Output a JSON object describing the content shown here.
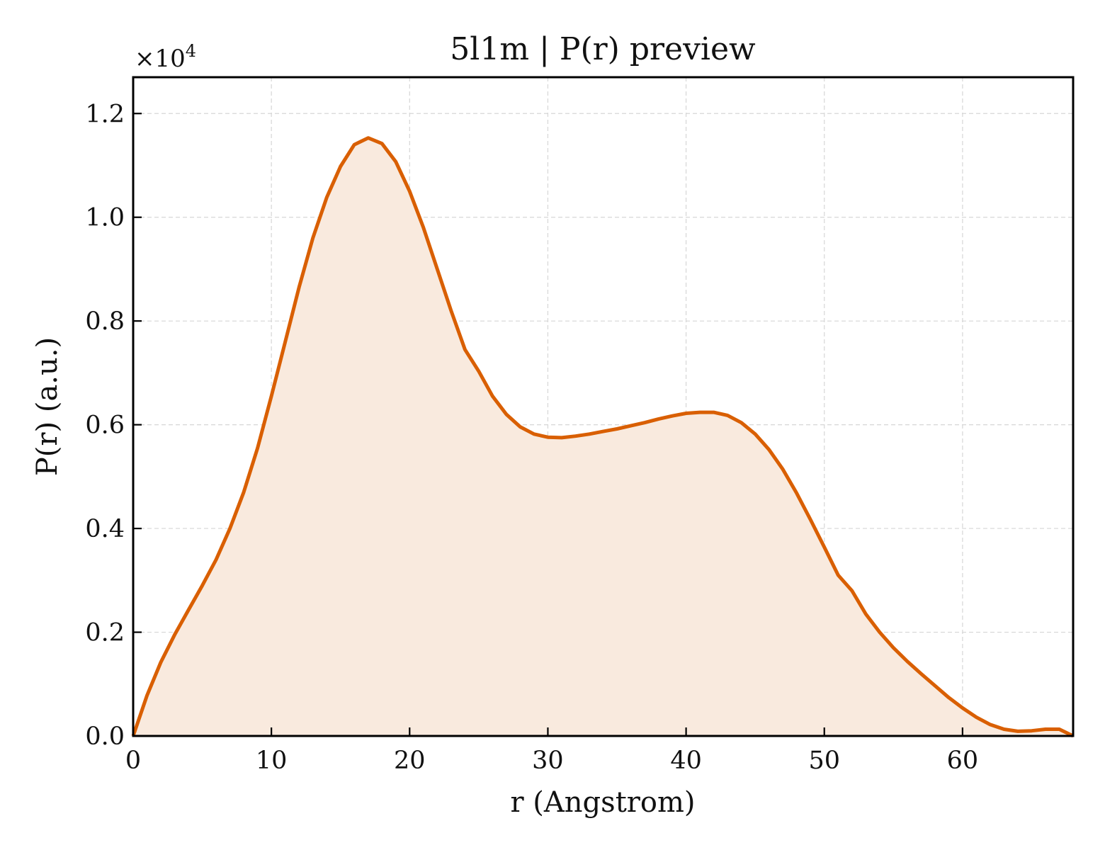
{
  "chart_data": {
    "type": "area",
    "title": "5l1m | P(r) preview",
    "xlabel": "r (Angstrom)",
    "ylabel": "P(r) (a.u.)",
    "y_offset_label": "×10",
    "y_offset_exponent": "4",
    "xlim": [
      0,
      68
    ],
    "ylim": [
      0,
      1.27
    ],
    "xticks": [
      0,
      10,
      20,
      30,
      40,
      50,
      60
    ],
    "xtick_labels": [
      "0",
      "10",
      "20",
      "30",
      "40",
      "50",
      "60"
    ],
    "yticks": [
      0,
      0.2,
      0.4,
      0.6,
      0.8,
      1.0,
      1.2
    ],
    "ytick_labels": [
      "0.0",
      "0.2",
      "0.4",
      "0.6",
      "0.8",
      "1.0",
      "1.2"
    ],
    "grid": true,
    "line_color": "#D95F02",
    "fill_color": "#F9EADE",
    "series": [
      {
        "x": [
          0,
          1,
          2,
          3,
          4,
          5,
          6,
          7,
          8,
          9,
          10,
          11,
          12,
          13,
          14,
          15,
          16,
          17,
          18,
          19,
          20,
          21,
          22,
          23,
          24,
          25,
          26,
          27,
          28,
          29,
          30,
          31,
          32,
          33,
          34,
          35,
          36,
          37,
          38,
          39,
          40,
          41,
          42,
          43,
          44,
          45,
          46,
          47,
          48,
          49,
          50,
          51,
          52,
          53,
          54,
          55,
          56,
          57,
          58,
          59,
          60,
          61,
          62,
          63,
          64,
          65,
          66,
          67,
          68
        ],
        "y": [
          0.0,
          0.078,
          0.142,
          0.195,
          0.243,
          0.29,
          0.34,
          0.4,
          0.47,
          0.555,
          0.655,
          0.76,
          0.865,
          0.96,
          1.038,
          1.098,
          1.14,
          1.153,
          1.142,
          1.107,
          1.05,
          0.98,
          0.9,
          0.82,
          0.745,
          0.703,
          0.655,
          0.62,
          0.596,
          0.582,
          0.576,
          0.575,
          0.578,
          0.582,
          0.587,
          0.592,
          0.598,
          0.604,
          0.611,
          0.617,
          0.622,
          0.624,
          0.624,
          0.618,
          0.604,
          0.582,
          0.552,
          0.514,
          0.468,
          0.417,
          0.364,
          0.31,
          0.28,
          0.235,
          0.2,
          0.17,
          0.144,
          0.12,
          0.097,
          0.074,
          0.054,
          0.036,
          0.022,
          0.013,
          0.009,
          0.01,
          0.013,
          0.013,
          0.0
        ]
      }
    ]
  }
}
